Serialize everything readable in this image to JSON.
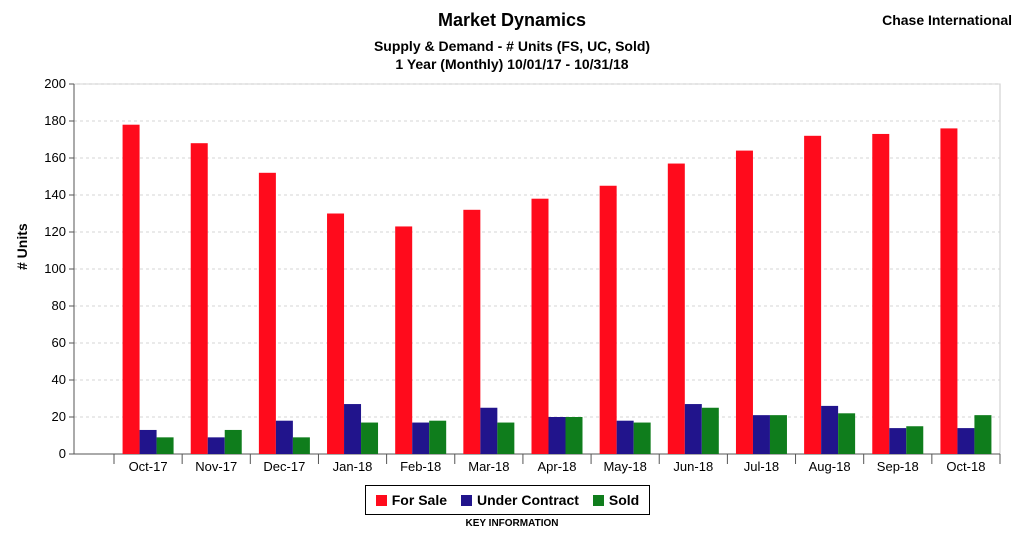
{
  "header": {
    "title": "Market Dynamics",
    "subtitle1": "Supply & Demand - # Units (FS, UC, Sold)",
    "subtitle2": "1 Year (Monthly) 10/01/17 - 10/31/18",
    "brand": "Chase International"
  },
  "legend": {
    "caption": "KEY INFORMATION"
  },
  "chart_data": {
    "type": "bar",
    "categories": [
      "Oct-17",
      "Nov-17",
      "Dec-17",
      "Jan-18",
      "Feb-18",
      "Mar-18",
      "Apr-18",
      "May-18",
      "Jun-18",
      "Jul-18",
      "Aug-18",
      "Sep-18",
      "Oct-18"
    ],
    "series": [
      {
        "name": "For Sale",
        "color": "#ff0b1c",
        "values": [
          178,
          168,
          152,
          130,
          123,
          132,
          138,
          145,
          157,
          164,
          172,
          173,
          176
        ]
      },
      {
        "name": "Under Contract",
        "color": "#21148c",
        "values": [
          13,
          9,
          18,
          27,
          17,
          25,
          20,
          18,
          27,
          21,
          26,
          14,
          14
        ]
      },
      {
        "name": "Sold",
        "color": "#0f7d1c",
        "values": [
          9,
          13,
          9,
          17,
          18,
          17,
          20,
          17,
          25,
          21,
          22,
          15,
          21
        ]
      }
    ],
    "title": "Market Dynamics",
    "ylabel": "# Units",
    "xlabel": "",
    "ylim": [
      0,
      200
    ],
    "yticks": [
      0,
      20,
      40,
      60,
      80,
      100,
      120,
      140,
      160,
      180,
      200
    ],
    "grid": true,
    "legend_position": "bottom"
  }
}
